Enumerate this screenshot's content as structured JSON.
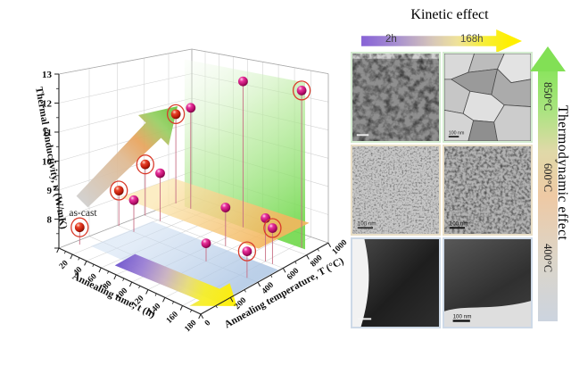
{
  "figure": {
    "left_panel": {
      "z_axis_title": "Thermal conductivity, κ (W/mK)",
      "x_axis_title": "Annealing time, t (h)",
      "y_axis_title": "Annealing temperature, T (°C)",
      "as_cast_label": "as-cast"
    },
    "right_panel": {
      "kinetic_title": "Kinetic effect",
      "kinetic_start": "2h",
      "kinetic_end": "168h",
      "thermo_title": "Thermodynamic effect",
      "thermo_temps": [
        "850°C",
        "600°C",
        "400°C"
      ],
      "micrographs": [
        {
          "temperature": "850°C",
          "time": "2h",
          "scale_label": ""
        },
        {
          "temperature": "850°C",
          "time": "168h",
          "scale_label": "100 nm"
        },
        {
          "temperature": "600°C",
          "time": "2h",
          "scale_label": "100 nm"
        },
        {
          "temperature": "600°C",
          "time": "168h",
          "scale_label": "100 nm"
        },
        {
          "temperature": "400°C",
          "time": "2h",
          "scale_label": ""
        },
        {
          "temperature": "400°C",
          "time": "168h",
          "scale_label": "100 nm"
        }
      ]
    }
  },
  "chart_data": {
    "type": "scatter",
    "projection": "3d",
    "xlabel": "Annealing time, t (h)",
    "ylabel": "Annealing temperature, T (°C)",
    "zlabel": "Thermal conductivity, κ (W/mK)",
    "xlim": [
      0,
      180
    ],
    "ylim": [
      0,
      1000
    ],
    "zlim": [
      7,
      13
    ],
    "xticks": [
      0,
      20,
      40,
      60,
      80,
      100,
      120,
      140,
      160,
      180
    ],
    "yticks": [
      0,
      200,
      400,
      600,
      800,
      1000
    ],
    "zticks": [
      7,
      8,
      9,
      10,
      11,
      12,
      13
    ],
    "grid": true,
    "points": [
      {
        "t": 8,
        "T": 100,
        "k": 7.6,
        "color": "red",
        "circled": true,
        "label": "as-cast"
      },
      {
        "t": 2,
        "T": 400,
        "k": 8.3,
        "color": "red",
        "circled": true
      },
      {
        "t": 24,
        "T": 400,
        "k": 8.15,
        "color": "magenta",
        "circled": false
      },
      {
        "t": 120,
        "T": 400,
        "k": 7.6,
        "color": "magenta",
        "circled": false
      },
      {
        "t": 168,
        "T": 400,
        "k": 7.85,
        "color": "magenta",
        "circled": true
      },
      {
        "t": 2,
        "T": 600,
        "k": 8.95,
        "color": "red",
        "circled": true
      },
      {
        "t": 24,
        "T": 600,
        "k": 8.8,
        "color": "magenta",
        "circled": false
      },
      {
        "t": 112,
        "T": 600,
        "k": 8.35,
        "color": "magenta",
        "circled": false
      },
      {
        "t": 160,
        "T": 600,
        "k": 8.45,
        "color": "magenta",
        "circled": false
      },
      {
        "t": 168,
        "T": 600,
        "k": 8.2,
        "color": "magenta",
        "circled": true
      },
      {
        "t": 2,
        "T": 850,
        "k": 10.55,
        "color": "red",
        "circled": true
      },
      {
        "t": 24,
        "T": 850,
        "k": 10.95,
        "color": "magenta",
        "circled": false
      },
      {
        "t": 96,
        "T": 850,
        "k": 12.4,
        "color": "magenta",
        "circled": false
      },
      {
        "t": 168,
        "T": 850,
        "k": 12.5,
        "color": "magenta",
        "circled": true
      }
    ],
    "planes": [
      {
        "type": "vertical",
        "T": 850,
        "t_range": [
          15,
          172
        ],
        "k_range": [
          7,
          12.8
        ],
        "color": "green"
      },
      {
        "type": "horizontal",
        "k": 8.0,
        "t_range": [
          0,
          178
        ],
        "T_range": [
          420,
          840
        ],
        "color": "orange"
      },
      {
        "type": "horizontal",
        "k": 7.03,
        "t_range": [
          20,
          180
        ],
        "T_range": [
          120,
          560
        ],
        "color": "blue"
      }
    ],
    "annotations": [
      "as-cast"
    ]
  }
}
